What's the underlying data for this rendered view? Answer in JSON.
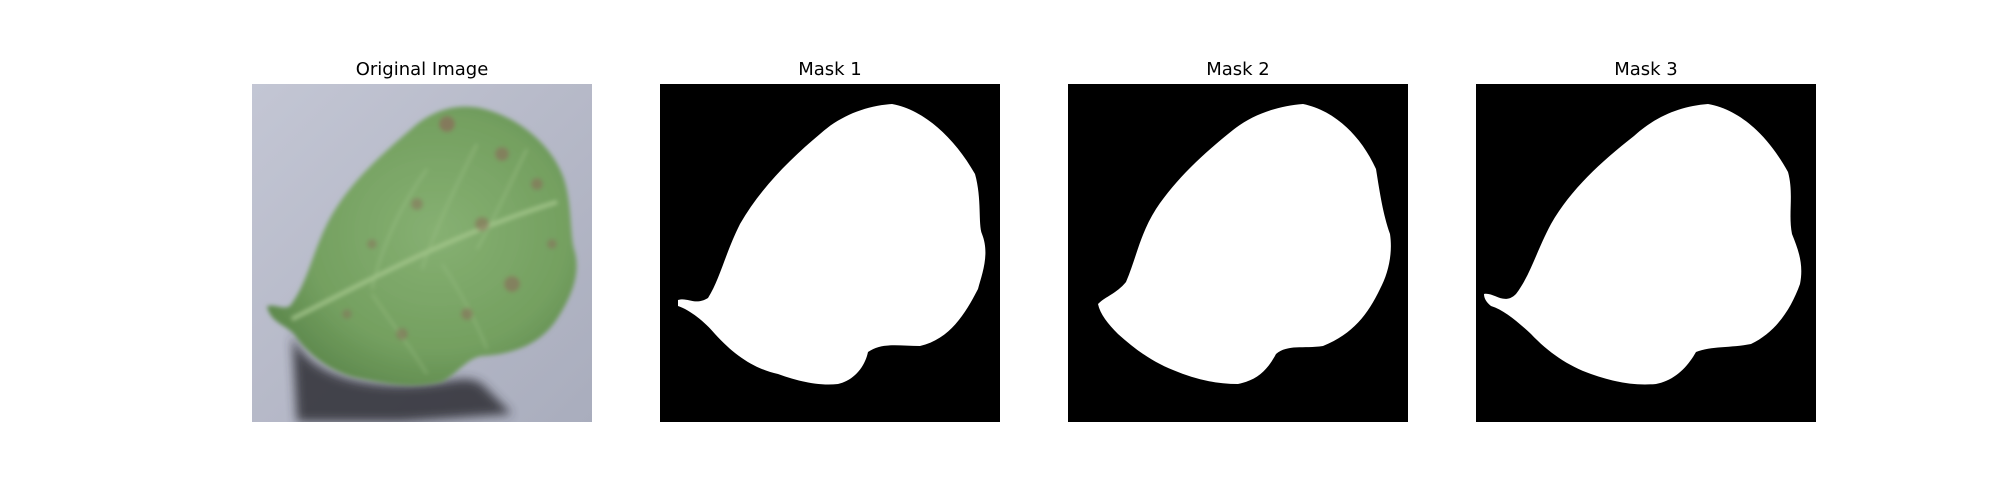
{
  "figure": {
    "background": "#ffffff",
    "panels": [
      {
        "title": "Original Image",
        "kind": "photo",
        "subject": "leaf-with-spots"
      },
      {
        "title": "Mask 1",
        "kind": "binary-mask",
        "foreground": "#ffffff",
        "background": "#000000"
      },
      {
        "title": "Mask 2",
        "kind": "binary-mask",
        "foreground": "#ffffff",
        "background": "#000000"
      },
      {
        "title": "Mask 3",
        "kind": "binary-mask",
        "foreground": "#ffffff",
        "background": "#000000"
      }
    ]
  },
  "colors": {
    "photo_background": "#b9bccb",
    "leaf_green": "#7fa86a",
    "leaf_dark": "#5e8450",
    "leaf_spot": "#8a6a5a",
    "shadow": "#2f2f35"
  }
}
